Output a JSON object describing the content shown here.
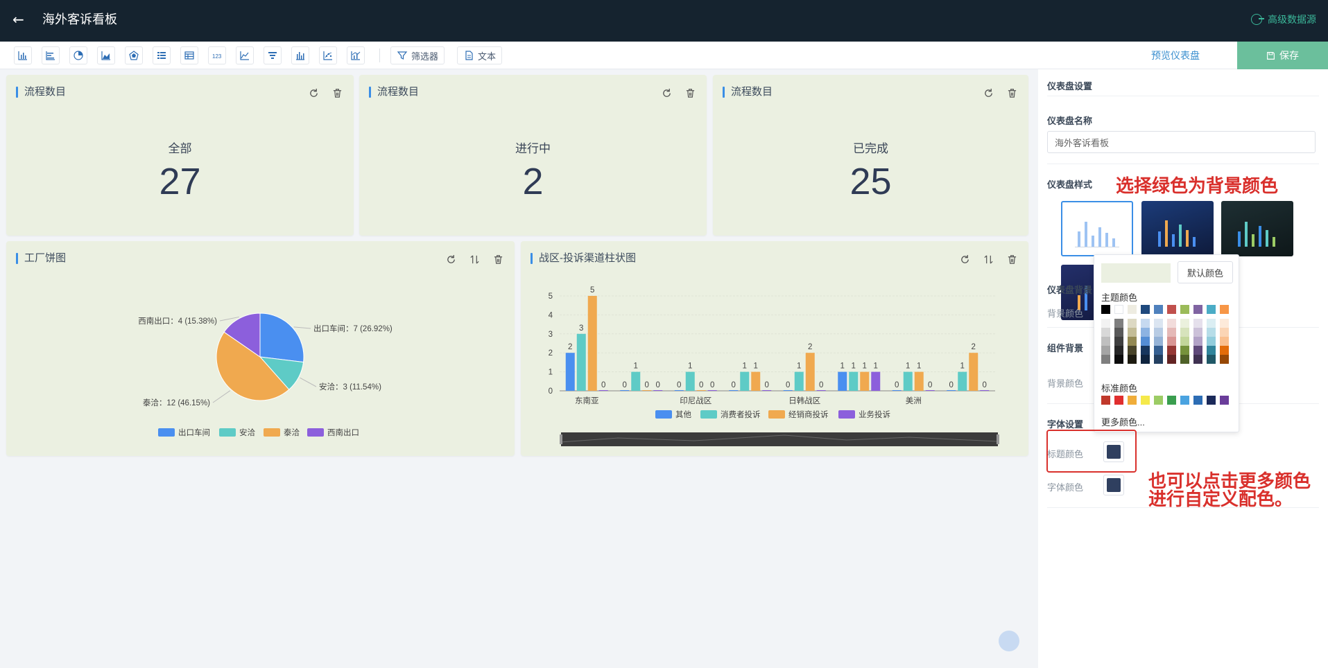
{
  "header": {
    "back_label": "←",
    "title": "海外客诉看板",
    "advanced_datasource": "高级数据源"
  },
  "toolbar": {
    "icons": [
      "bar-chart-icon",
      "horizontal-bar-icon",
      "pie-chart-icon",
      "area-chart-icon",
      "radar-chart-icon",
      "list-icon",
      "table-icon",
      "number-icon",
      "line-chart-icon",
      "funnel-icon",
      "column-chart-icon",
      "scatter-icon",
      "combo-chart-icon"
    ],
    "filter_label": "筛选器",
    "text_label": "文本",
    "preview_label": "预览仪表盘",
    "save_label": "保存"
  },
  "kpi_cards": [
    {
      "title": "流程数目",
      "label": "全部",
      "value": "27"
    },
    {
      "title": "流程数目",
      "label": "进行中",
      "value": "2"
    },
    {
      "title": "流程数目",
      "label": "已完成",
      "value": "25"
    }
  ],
  "pie_card": {
    "title": "工厂饼图"
  },
  "bar_card": {
    "title": "战区-投诉渠道柱状图"
  },
  "colors": {
    "card_bg": "#ebf0e1",
    "accent": "#3a8ee6",
    "header_bg": "#15232f",
    "save_bg": "#6bbf9c",
    "title_color": "#2f3f5f",
    "font_color": "#2f3f5f"
  },
  "chart_data": [
    {
      "type": "pie",
      "title": "工厂饼图",
      "categories": [
        "出口车间",
        "安洽",
        "泰洽",
        "西南出口"
      ],
      "values": [
        7,
        3,
        12,
        4
      ],
      "labels": [
        "出口车间：7 (26.92%)",
        "安洽：3 (11.54%)",
        "泰洽：12 (46.15%)",
        "西南出口：4 (15.38%)"
      ],
      "colors": [
        "#4a8ff0",
        "#5ecbc6",
        "#f0a94f",
        "#8c5fdc"
      ],
      "legend": "bottom"
    },
    {
      "type": "bar",
      "title": "战区-投诉渠道柱状图",
      "categories": [
        "东南亚",
        "",
        "印尼战区",
        "",
        "日韩战区",
        "",
        "美洲",
        ""
      ],
      "series": [
        {
          "name": "其他",
          "values": [
            2,
            0,
            0,
            0,
            0,
            1,
            0,
            0
          ]
        },
        {
          "name": "消费者投诉",
          "values": [
            3,
            1,
            1,
            1,
            1,
            1,
            1,
            1
          ]
        },
        {
          "name": "经销商投诉",
          "values": [
            5,
            0,
            0,
            1,
            2,
            1,
            1,
            2
          ]
        },
        {
          "name": "业务投诉",
          "values": [
            0,
            0,
            0,
            0,
            0,
            1,
            0,
            0
          ]
        }
      ],
      "ylim": [
        0,
        5
      ],
      "yticks": [
        0,
        1,
        2,
        3,
        4,
        5
      ],
      "colors": [
        "#4a8ff0",
        "#5ecbc6",
        "#f0a94f",
        "#8c5fdc"
      ],
      "legend": "bottom",
      "data_zoom": true
    }
  ],
  "panel": {
    "settings_title": "仪表盘设置",
    "name_label": "仪表盘名称",
    "name_value": "海外客诉看板",
    "style_label": "仪表盘样式",
    "dash_bg_label": "仪表盘背景",
    "bg_color_label": "背景颜色",
    "comp_bg_label": "组件背景",
    "comp_bg_color_label": "背景颜色",
    "font_settings_label": "字体设置",
    "title_color_label": "标题颜色",
    "font_color_label": "字体颜色"
  },
  "picker": {
    "default_label": "默认颜色",
    "theme_label": "主题颜色",
    "standard_label": "标准颜色",
    "more_label": "更多颜色...",
    "theme_top": [
      "#000000",
      "#ffffff",
      "#eeece1",
      "#1f497d",
      "#4f81bd",
      "#c0504d",
      "#9bbb59",
      "#8064a2",
      "#4bacc6",
      "#f79646"
    ],
    "theme_columns": [
      [
        "#f2f2f2",
        "#d8d8d8",
        "#bfbfbf",
        "#a5a5a5",
        "#7f7f7f"
      ],
      [
        "#7f7f7f",
        "#595959",
        "#3f3f3f",
        "#262626",
        "#0c0c0c"
      ],
      [
        "#ddd9c3",
        "#c4bd97",
        "#938953",
        "#494429",
        "#1d1b10"
      ],
      [
        "#c6d9f0",
        "#8db3e2",
        "#548dd4",
        "#17365d",
        "#0f243e"
      ],
      [
        "#dbe5f1",
        "#b8cce4",
        "#95b3d7",
        "#366092",
        "#244061"
      ],
      [
        "#f2dcdb",
        "#e5b9b7",
        "#d99694",
        "#953734",
        "#632423"
      ],
      [
        "#ebf1dd",
        "#d7e3bc",
        "#c3d69b",
        "#76923c",
        "#4f6128"
      ],
      [
        "#e5e0ec",
        "#ccc1d9",
        "#b2a2c7",
        "#5f497a",
        "#3f3151"
      ],
      [
        "#dbeef3",
        "#b7dde8",
        "#92cddc",
        "#31859b",
        "#205867"
      ],
      [
        "#fdeada",
        "#fbd5b5",
        "#fac08f",
        "#e36c09",
        "#974806"
      ]
    ],
    "standard": [
      "#c0392b",
      "#e02e2e",
      "#f0ad3a",
      "#f5e94a",
      "#9ccc65",
      "#3a9e4f",
      "#4aa3e0",
      "#2d6db4",
      "#1b2a5a",
      "#6a3d9a"
    ]
  },
  "annotations": {
    "select_green": "选择绿色为背景颜色",
    "more_colors_1": "也可以点击更多颜色",
    "more_colors_2": "进行自定义配色。"
  }
}
